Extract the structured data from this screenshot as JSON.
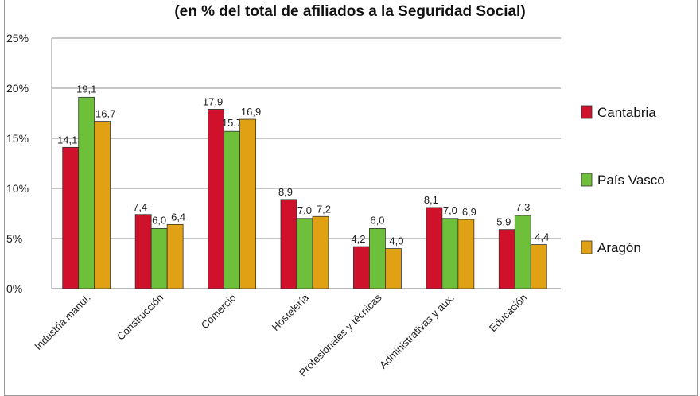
{
  "chart_data": {
    "type": "bar",
    "title": "(en % del total de afiliados a la Seguridad Social)",
    "xlabel": "",
    "ylabel": "",
    "ylim": [
      0,
      25
    ],
    "yticks": [
      "0%",
      "5%",
      "10%",
      "15%",
      "20%",
      "25%"
    ],
    "grid": true,
    "legend_position": "right",
    "categories": [
      "Industria manuf.",
      "Construcción",
      "Comercio",
      "Hostelería",
      "Profesionales y técnicas",
      "Administrativas y aux.",
      "Educación"
    ],
    "series": [
      {
        "name": "Cantabria",
        "color": "#d0112b",
        "values": [
          14.1,
          7.4,
          17.9,
          8.9,
          4.2,
          8.1,
          5.9
        ],
        "labels": [
          "14,1",
          "7,4",
          "17,9",
          "8,9",
          "4,2",
          "8,1",
          "5,9"
        ]
      },
      {
        "name": "País Vasco",
        "color": "#6ebf3a",
        "values": [
          19.1,
          6.0,
          15.7,
          7.0,
          6.0,
          7.0,
          7.3
        ],
        "labels": [
          "19,1",
          "6,0",
          "15,7",
          "7,0",
          "6,0",
          "7,0",
          "7,3"
        ]
      },
      {
        "name": "Aragón",
        "color": "#e0a114",
        "values": [
          16.7,
          6.4,
          16.9,
          7.2,
          4.0,
          6.9,
          4.4
        ],
        "labels": [
          "16,7",
          "6,4",
          "16,9",
          "7,2",
          "4,0",
          "6,9",
          "4,4"
        ]
      }
    ]
  }
}
